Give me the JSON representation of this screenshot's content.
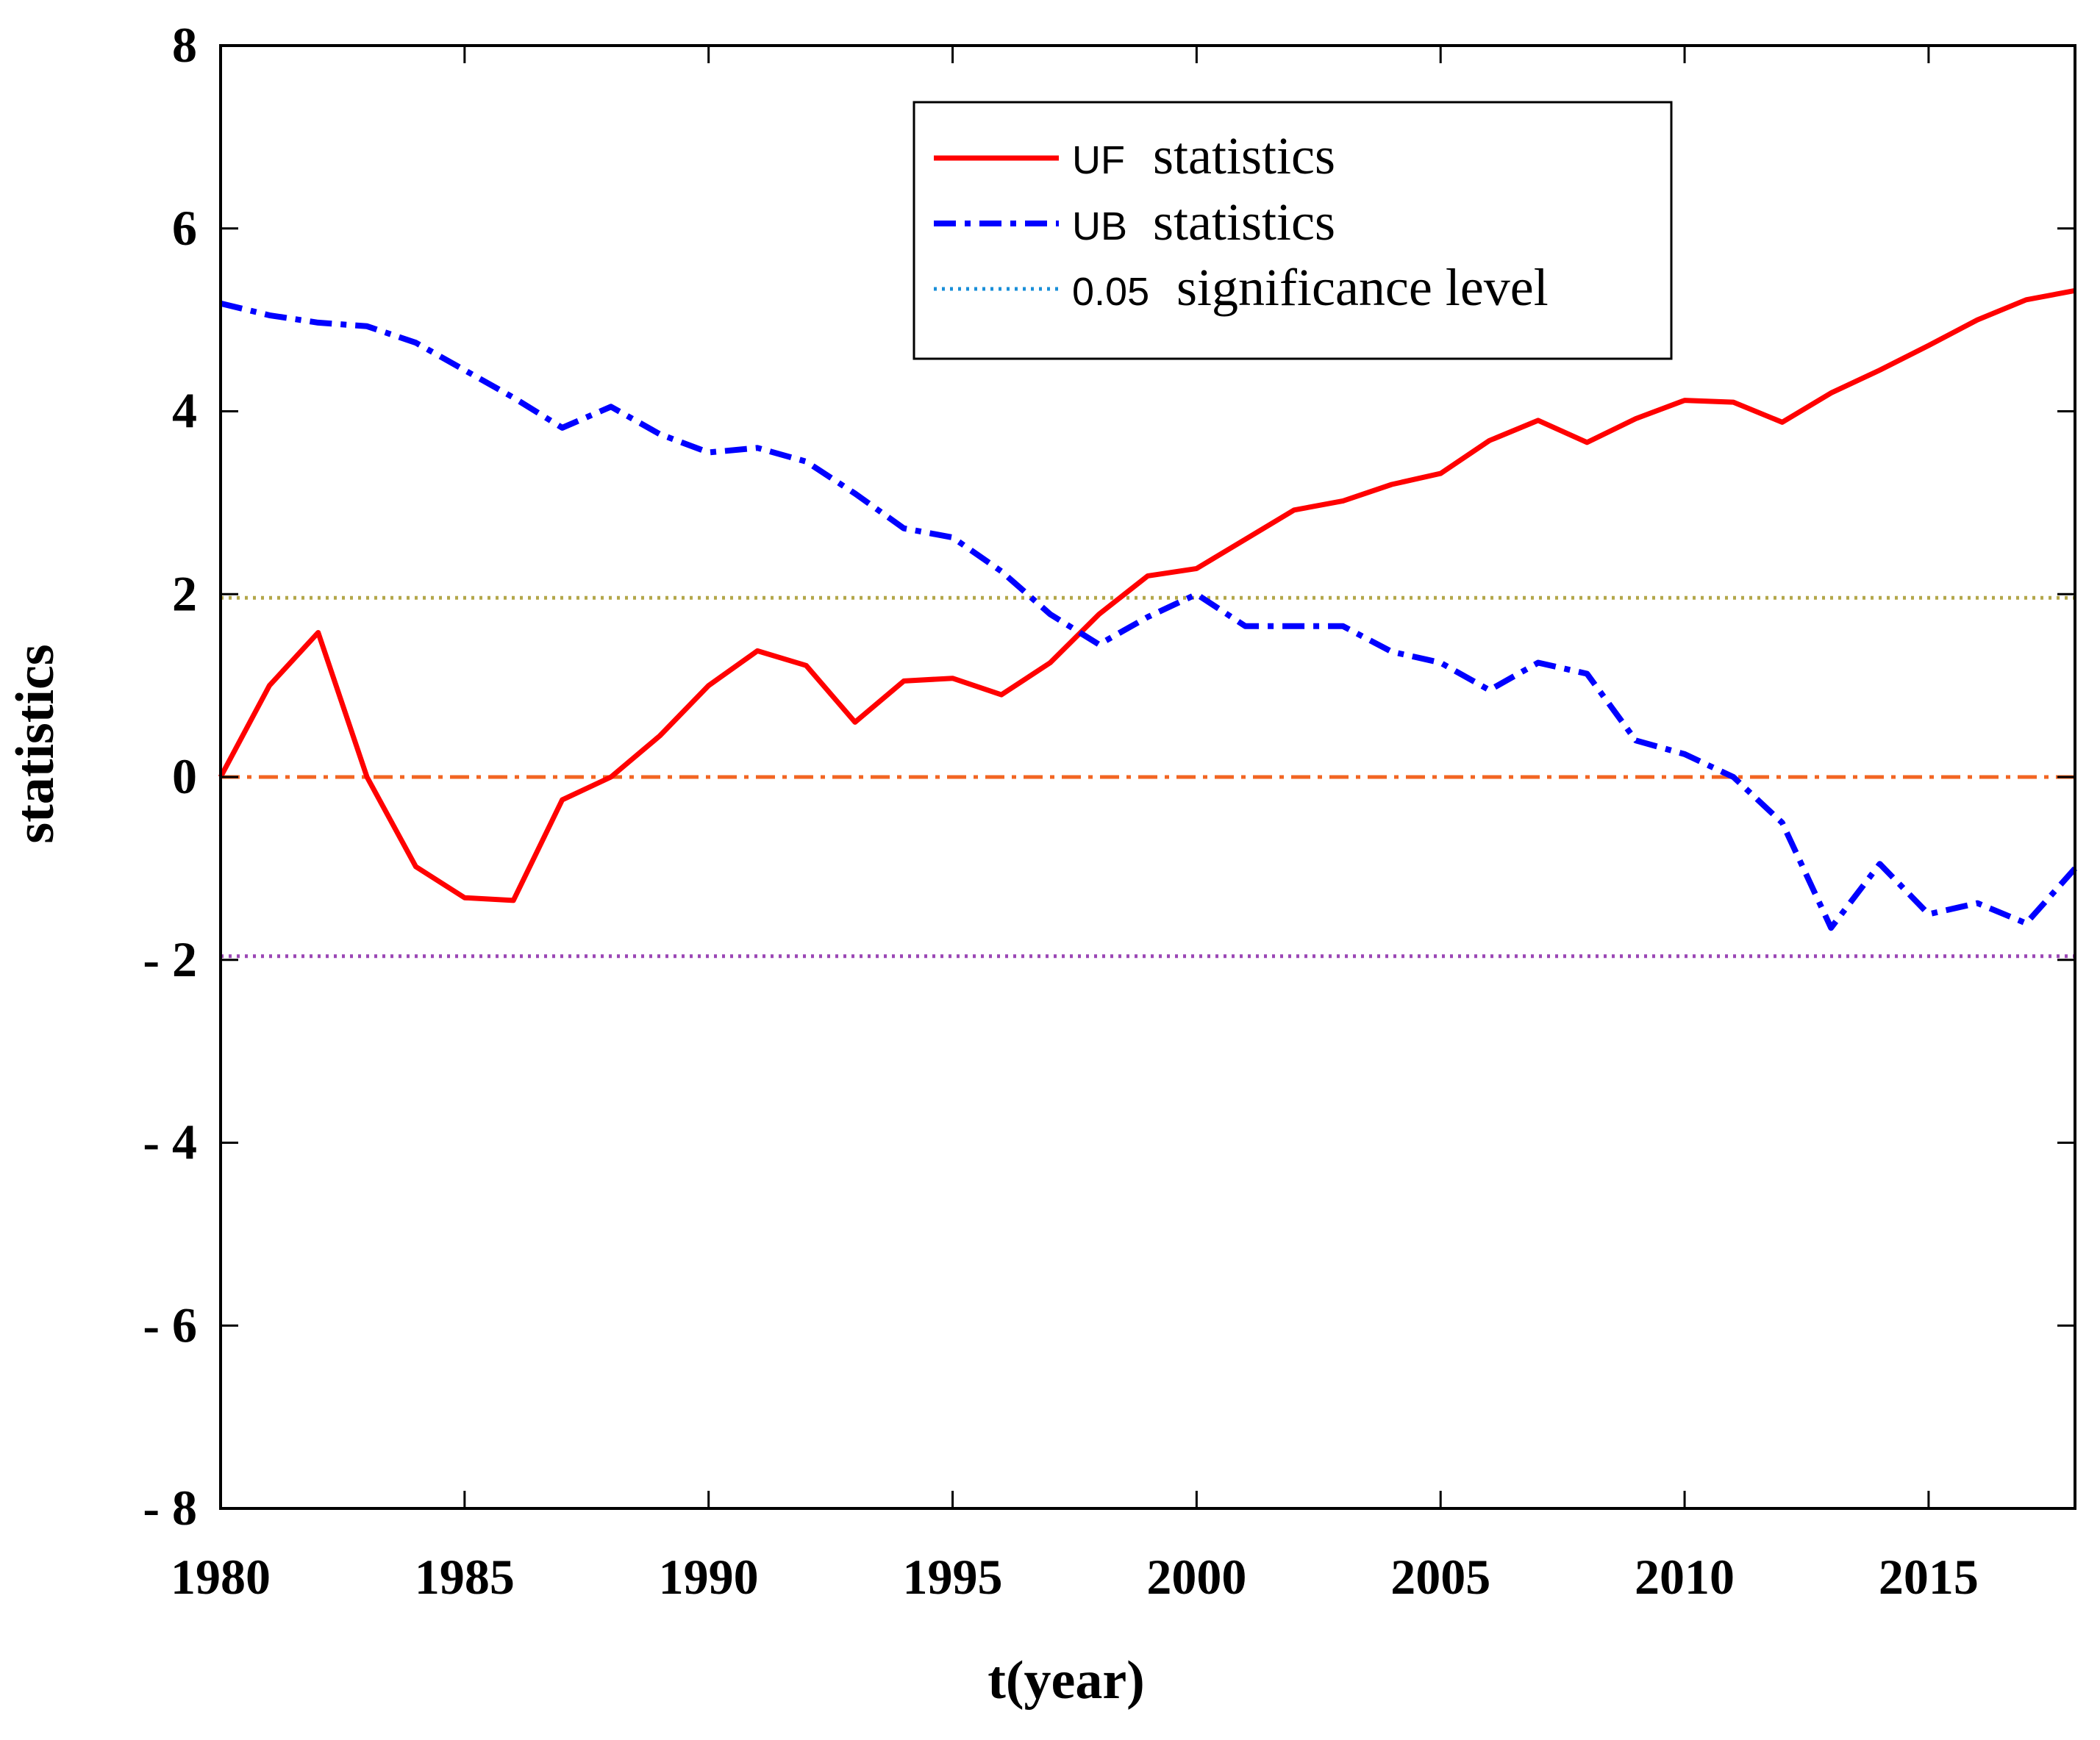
{
  "chart_data": {
    "type": "line",
    "title": "",
    "xlabel": "t(year)",
    "ylabel": "statistics",
    "xlim": [
      1980,
      2018
    ],
    "ylim": [
      -8,
      8
    ],
    "x_ticks": [
      "1980",
      "1985",
      "1990",
      "1995",
      "2000",
      "2005",
      "2010",
      "2015"
    ],
    "y_ticks": [
      "8",
      "6",
      "4",
      "2",
      "0",
      "- 2",
      "- 4",
      "- 6",
      "- 8"
    ],
    "grid": false,
    "legend_position": "top-center",
    "x": [
      1980,
      1981,
      1982,
      1983,
      1984,
      1985,
      1986,
      1987,
      1988,
      1989,
      1990,
      1991,
      1992,
      1993,
      1994,
      1995,
      1996,
      1997,
      1998,
      1999,
      2000,
      2001,
      2002,
      2003,
      2004,
      2005,
      2006,
      2007,
      2008,
      2009,
      2010,
      2011,
      2012,
      2013,
      2014,
      2015,
      2016,
      2017,
      2018
    ],
    "series": [
      {
        "name": "UF statistics",
        "code": "UF",
        "label": "statistics",
        "color": "#ff0000",
        "style": "solid",
        "values": [
          0.0,
          1.0,
          1.58,
          0.0,
          -0.98,
          -1.32,
          -1.35,
          -0.25,
          0.0,
          0.45,
          1.0,
          1.38,
          1.22,
          0.6,
          1.05,
          1.08,
          0.9,
          1.25,
          1.78,
          2.2,
          2.28,
          2.6,
          2.92,
          3.02,
          3.2,
          3.32,
          3.68,
          3.9,
          3.66,
          3.92,
          4.12,
          4.1,
          3.88,
          4.2,
          4.45,
          4.72,
          5.0,
          5.22,
          5.32
        ]
      },
      {
        "name": "UB statistics",
        "code": "UB",
        "label": "statistics",
        "color": "#0000ff",
        "style": "dashdot",
        "values": [
          5.18,
          5.05,
          4.97,
          4.93,
          4.75,
          4.45,
          4.15,
          3.82,
          4.05,
          3.75,
          3.55,
          3.6,
          3.45,
          3.1,
          2.72,
          2.62,
          2.25,
          1.78,
          1.45,
          1.75,
          2.0,
          1.65,
          1.65,
          1.65,
          1.37,
          1.25,
          0.95,
          1.25,
          1.13,
          0.4,
          0.25,
          0.0,
          -0.5,
          -1.65,
          -0.95,
          -1.5,
          -1.38,
          -1.6,
          -1.0
        ]
      }
    ],
    "reference_lines": [
      {
        "name": "upper significance level",
        "y": 1.96,
        "color": "#b3a74a",
        "style": "dotted"
      },
      {
        "name": "zero line",
        "y": 0,
        "color": "#f26522",
        "style": "dashdot"
      },
      {
        "name": "lower significance level",
        "y": -1.96,
        "color": "#9b47b5",
        "style": "dotted"
      }
    ],
    "legend": [
      {
        "code": "UF",
        "label": "statistics",
        "color": "#ff0000",
        "style": "solid"
      },
      {
        "code": "UB",
        "label": "statistics",
        "color": "#0000ff",
        "style": "dashdot"
      },
      {
        "code": "0.05",
        "label": "significance level",
        "color": "#1a8fd8",
        "style": "dotted"
      }
    ]
  }
}
